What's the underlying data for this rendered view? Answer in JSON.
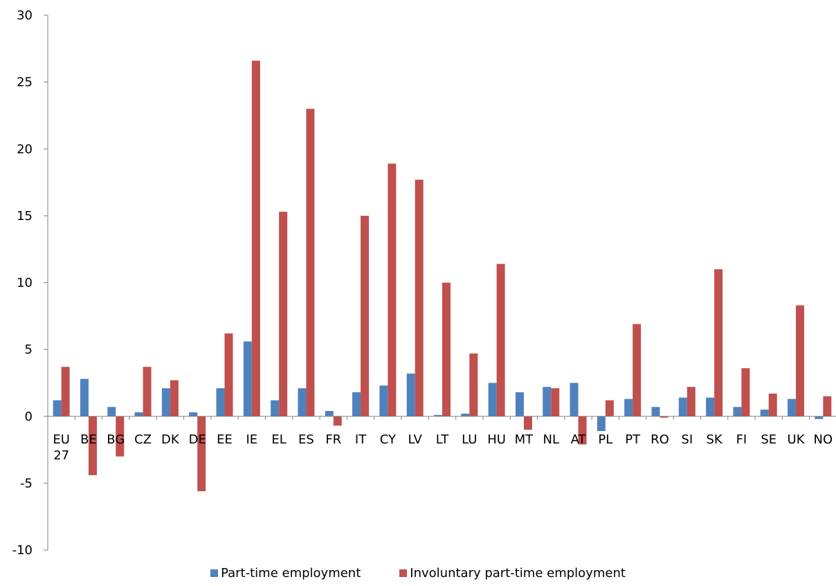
{
  "chart_data": {
    "type": "bar",
    "categories": [
      "EU 27",
      "BE",
      "BG",
      "CZ",
      "DK",
      "DE",
      "EE",
      "IE",
      "EL",
      "ES",
      "FR",
      "IT",
      "CY",
      "LV",
      "LT",
      "LU",
      "HU",
      "MT",
      "NL",
      "AT",
      "PL",
      "PT",
      "RO",
      "SI",
      "SK",
      "FI",
      "SE",
      "UK",
      "NO"
    ],
    "category_lines": [
      [
        "EU",
        "27"
      ],
      [
        "BE"
      ],
      [
        "BG"
      ],
      [
        "CZ"
      ],
      [
        "DK"
      ],
      [
        "DE"
      ],
      [
        "EE"
      ],
      [
        "IE"
      ],
      [
        "EL"
      ],
      [
        "ES"
      ],
      [
        "FR"
      ],
      [
        "IT"
      ],
      [
        "CY"
      ],
      [
        "LV"
      ],
      [
        "LT"
      ],
      [
        "LU"
      ],
      [
        "HU"
      ],
      [
        "MT"
      ],
      [
        "NL"
      ],
      [
        "AT"
      ],
      [
        "PL"
      ],
      [
        "PT"
      ],
      [
        "RO"
      ],
      [
        "SI"
      ],
      [
        "SK"
      ],
      [
        "FI"
      ],
      [
        "SE"
      ],
      [
        "UK"
      ],
      [
        "NO"
      ]
    ],
    "series": [
      {
        "name": "Part-time employment",
        "color": "#4F81BD",
        "values": [
          1.2,
          2.8,
          0.7,
          0.3,
          2.1,
          0.3,
          2.1,
          5.6,
          1.2,
          2.1,
          0.4,
          1.8,
          2.3,
          3.2,
          0.1,
          0.2,
          2.5,
          1.8,
          2.2,
          2.5,
          -1.1,
          1.3,
          0.7,
          1.4,
          1.4,
          0.7,
          0.5,
          1.3,
          -0.2
        ]
      },
      {
        "name": "Involuntary part-time employment",
        "color": "#C0504D",
        "values": [
          3.7,
          -4.4,
          -3.0,
          3.7,
          2.7,
          -5.6,
          6.2,
          26.6,
          15.3,
          23.0,
          -0.7,
          15.0,
          18.9,
          17.7,
          10.0,
          4.7,
          11.4,
          -1.0,
          2.1,
          -2.1,
          1.2,
          6.9,
          -0.1,
          2.2,
          11.0,
          3.6,
          1.7,
          8.3,
          1.5
        ]
      }
    ],
    "ylim": [
      -10,
      30
    ],
    "yticks": [
      -10,
      -5,
      0,
      5,
      10,
      15,
      20,
      25,
      30
    ],
    "ytick_labels": [
      "-10",
      "-5",
      "0",
      "5",
      "10",
      "15",
      "20",
      "25",
      "30"
    ],
    "grid": false,
    "legend_position": "bottom",
    "axis_color": "#808080"
  }
}
